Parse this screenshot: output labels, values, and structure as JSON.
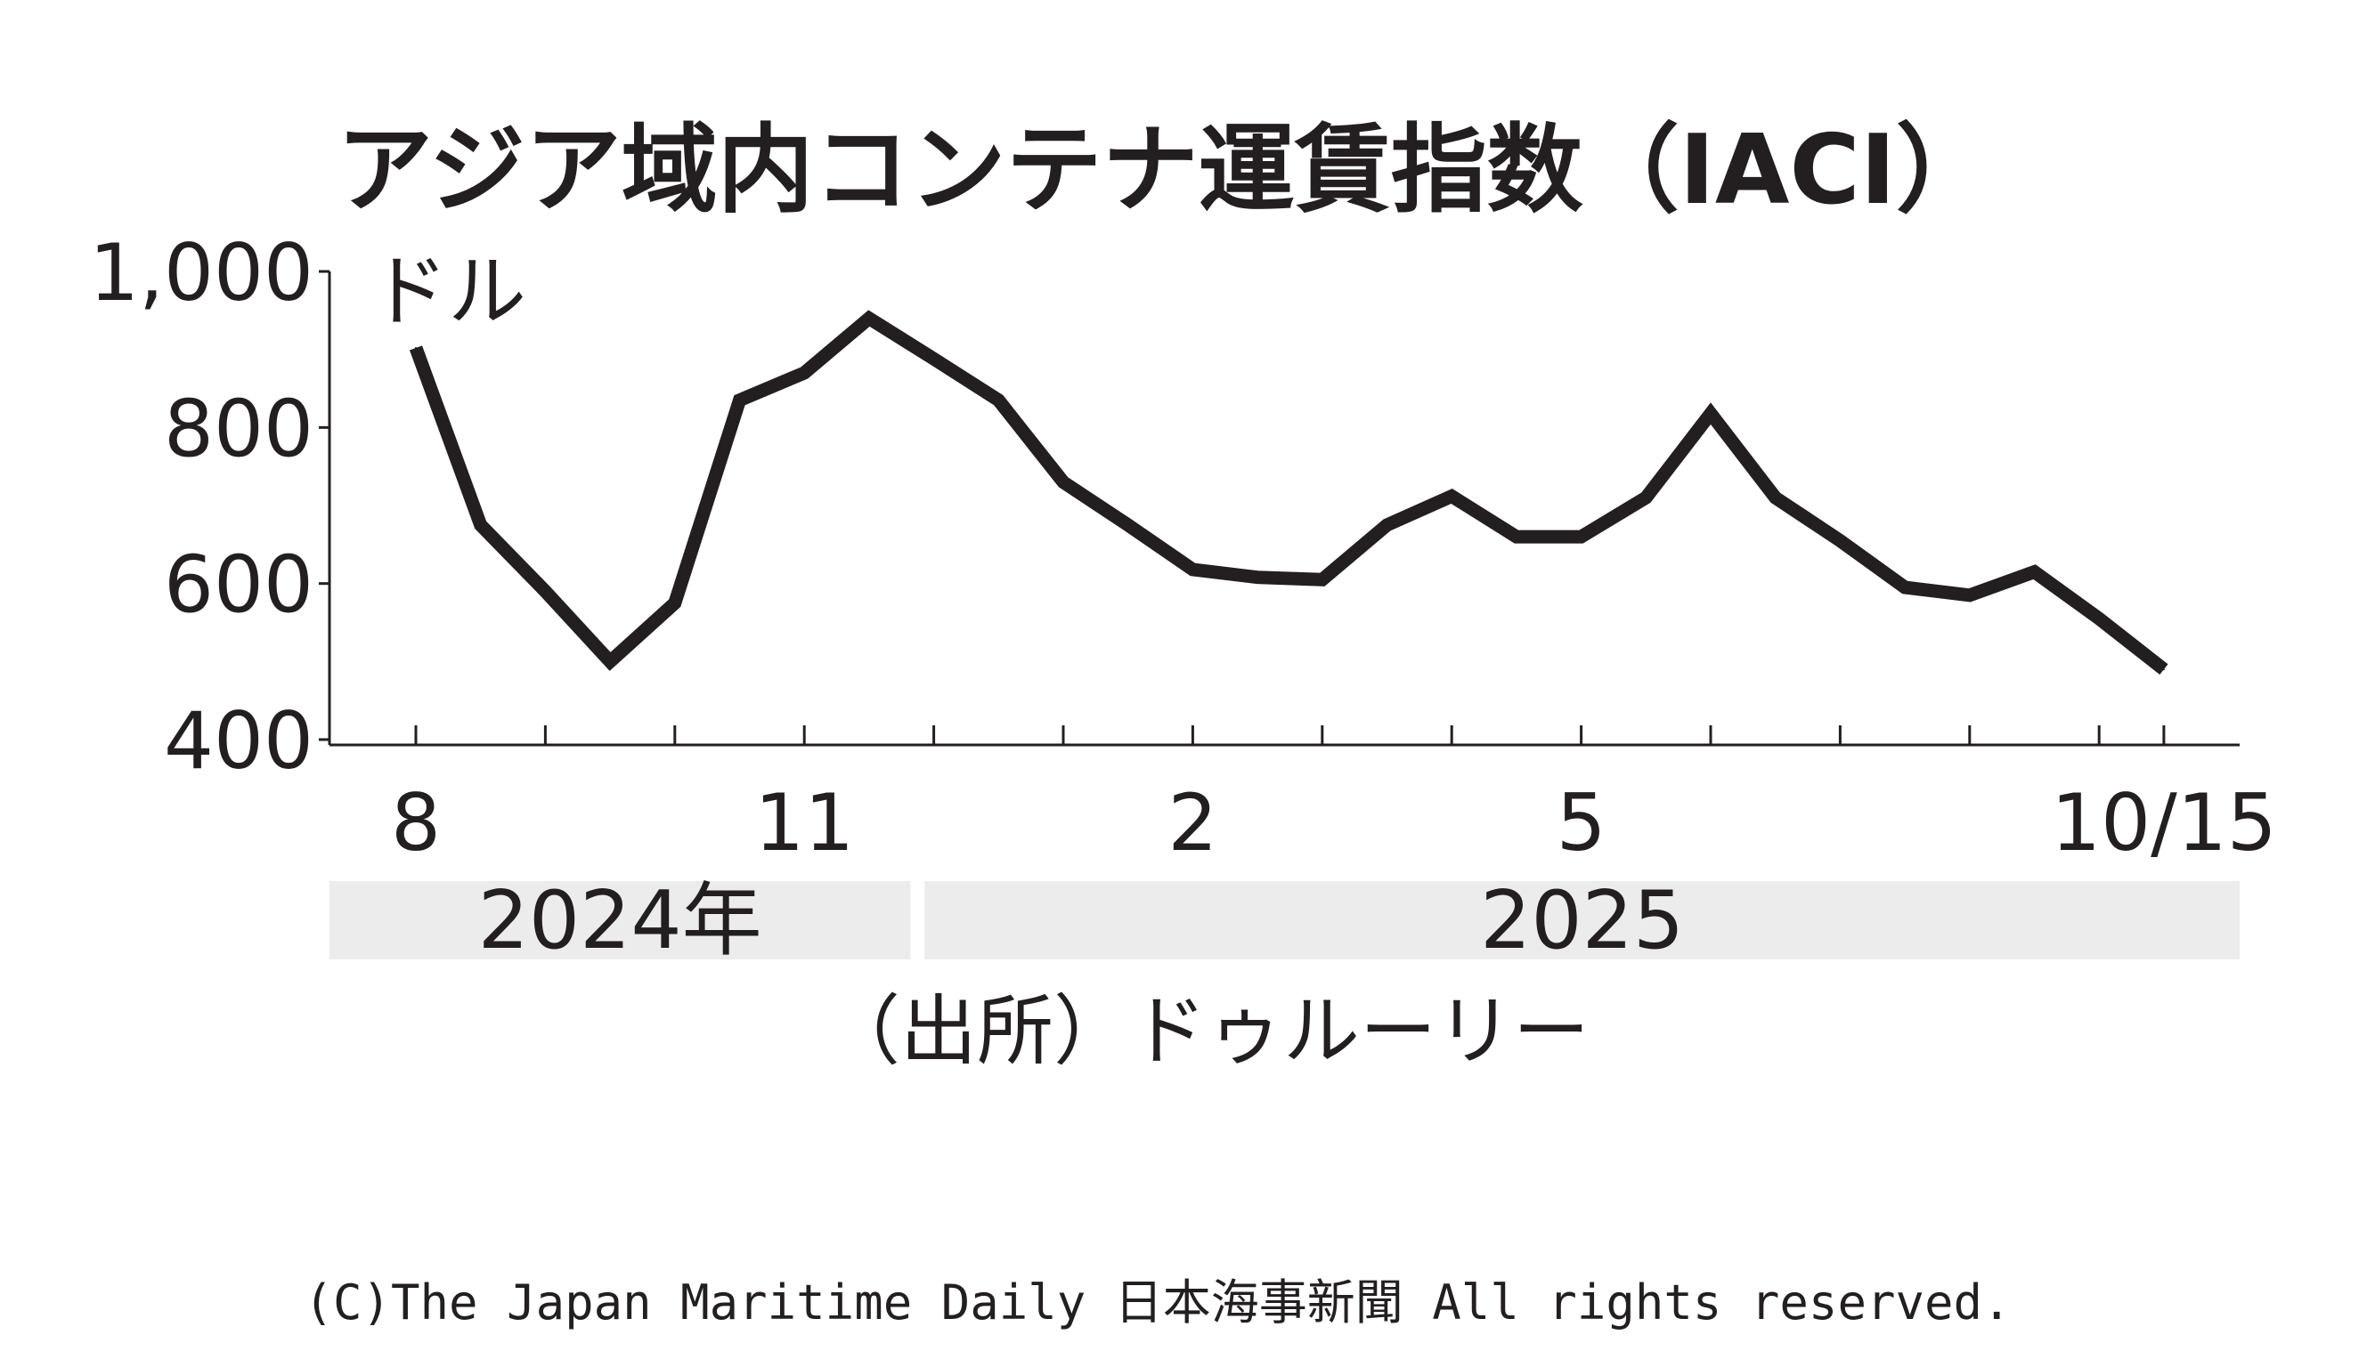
{
  "chart_data": {
    "type": "line",
    "title": "アジア域内コンテナ運賃指数（IACI）",
    "ylabel": "ドル",
    "ylim": [
      400,
      1000
    ],
    "yticks": [
      "400",
      "600",
      "800",
      "1,000"
    ],
    "ytick_values": [
      400,
      600,
      800,
      1000
    ],
    "x_tick_labels": [
      "8",
      "11",
      "2",
      "5",
      "10/15"
    ],
    "x_tick_label_positions": [
      0,
      6,
      12,
      18,
      27
    ],
    "x_minor_ticks": [
      0,
      2,
      4,
      6,
      8,
      10,
      12,
      14,
      16,
      18,
      20,
      22,
      24,
      26,
      27
    ],
    "x_n_points": 28,
    "year_bands": [
      {
        "label": "2024年",
        "start": 0,
        "end": 8
      },
      {
        "label": "2025",
        "start": 8,
        "end": 28
      }
    ],
    "series": [
      {
        "values": [
          902,
          675,
          590,
          500,
          575,
          835,
          870,
          940,
          888,
          835,
          730,
          675,
          618,
          608,
          605,
          675,
          712,
          660,
          660,
          710,
          818,
          710,
          655,
          595,
          585,
          615,
          555,
          490
        ]
      }
    ],
    "grid": false,
    "legend": "none",
    "source": "（出所）ドゥルーリー",
    "colors": {
      "line": "#231f20",
      "axis": "#231f20",
      "band": "#ececec",
      "text": "#231f20"
    }
  },
  "copyright": "(C)The Japan Maritime Daily 日本海事新聞 All rights reserved."
}
